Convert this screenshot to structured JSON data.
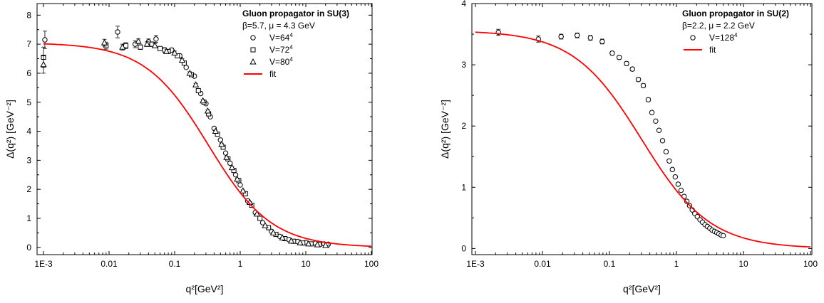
{
  "chart_data": [
    {
      "type": "scatter",
      "xscale": "log",
      "xlim": [
        0.001,
        100
      ],
      "ylim": [
        -0.25,
        8.4
      ],
      "xticks": [
        "1E-3",
        "0.01",
        "0.1",
        "1",
        "10",
        "100"
      ],
      "yticks": [
        "0",
        "1",
        "2",
        "3",
        "4",
        "5",
        "6",
        "7",
        "8"
      ],
      "xlabel": "q²[GeV²]",
      "ylabel": "Δ(q²) [GeV⁻²]",
      "legend": {
        "title": "Gluon propagator in SU(3)",
        "subtitle": "β=5.7, μ = 4.3 GeV",
        "placement": "top-right",
        "entries": [
          {
            "label": "V=64",
            "sup": "4",
            "marker": "circle"
          },
          {
            "label": "V=72",
            "sup": "4",
            "marker": "square"
          },
          {
            "label": "V=80",
            "sup": "4",
            "marker": "triangle"
          },
          {
            "label": "fit",
            "marker": "line",
            "color": "#ff0000"
          }
        ]
      },
      "fit": {
        "a": 7.05,
        "b": 1.2,
        "c": 0.4,
        "d": 0.9
      },
      "series": [
        {
          "name": "V=64⁴",
          "marker": "circle",
          "x": [
            0.00105,
            0.0135,
            0.025,
            0.04,
            0.052,
            0.07,
            0.09,
            0.12,
            0.15,
            0.2,
            0.25,
            0.3,
            0.35,
            0.4,
            0.5,
            0.6,
            0.7,
            0.85,
            1.0,
            1.3,
            1.7,
            2.2,
            3.0,
            4.0,
            5.5,
            7.5,
            10,
            14,
            19,
            22
          ],
          "y": [
            7.15,
            7.42,
            7.0,
            7.08,
            7.18,
            6.8,
            6.8,
            6.6,
            6.2,
            5.9,
            5.3,
            4.95,
            4.5,
            4.1,
            3.7,
            3.25,
            2.9,
            2.5,
            2.15,
            1.6,
            1.2,
            0.85,
            0.55,
            0.38,
            0.27,
            0.2,
            0.17,
            0.14,
            0.12,
            0.11
          ],
          "err": [
            0.3,
            0.2,
            0.12,
            0.1,
            0.12,
            0.08,
            0.07,
            0.06,
            0.05,
            0.05,
            0.05,
            0.05,
            0.04,
            0.04,
            0.04,
            0.04,
            0.03,
            0.03,
            0.03,
            0.03,
            0.02,
            0.02,
            0.02,
            0.02,
            0.02,
            0.02,
            0.01,
            0.01,
            0.01,
            0.01
          ]
        },
        {
          "name": "V=72⁴",
          "marker": "square",
          "x": [
            0.001,
            0.009,
            0.018,
            0.03,
            0.045,
            0.06,
            0.08,
            0.11,
            0.14,
            0.18,
            0.23,
            0.28,
            0.33,
            0.45,
            0.55,
            0.65,
            0.8,
            0.95,
            1.2,
            1.5,
            2.0,
            2.7,
            3.5,
            4.8,
            6.5,
            9,
            12,
            16,
            21
          ],
          "y": [
            6.55,
            6.95,
            6.95,
            6.9,
            7.0,
            6.85,
            6.75,
            6.6,
            6.35,
            5.95,
            5.4,
            5.0,
            4.6,
            3.9,
            3.45,
            3.05,
            2.65,
            2.3,
            1.85,
            1.45,
            1.0,
            0.68,
            0.45,
            0.3,
            0.21,
            0.15,
            0.12,
            0.1,
            0.08
          ],
          "err": [
            0.35,
            0.12,
            0.1,
            0.08,
            0.08,
            0.07,
            0.06,
            0.06,
            0.05,
            0.05,
            0.05,
            0.04,
            0.04,
            0.04,
            0.04,
            0.03,
            0.03,
            0.03,
            0.03,
            0.03,
            0.02,
            0.02,
            0.02,
            0.02,
            0.02,
            0.01,
            0.01,
            0.01,
            0.01
          ]
        },
        {
          "name": "V=80⁴",
          "marker": "triangle",
          "x": [
            0.001,
            0.0085,
            0.016,
            0.028,
            0.038,
            0.05,
            0.075,
            0.1,
            0.13,
            0.17,
            0.21,
            0.27,
            0.32,
            0.42,
            0.52,
            0.62,
            0.75,
            0.9,
            1.1,
            1.4,
            1.8,
            2.4,
            3.2,
            4.4,
            6.0,
            8.2,
            11,
            15,
            20
          ],
          "y": [
            6.3,
            7.05,
            6.9,
            7.1,
            7.0,
            6.95,
            6.75,
            6.7,
            6.45,
            6.0,
            5.6,
            5.05,
            4.7,
            4.0,
            3.55,
            3.1,
            2.75,
            2.35,
            1.95,
            1.55,
            1.15,
            0.75,
            0.5,
            0.33,
            0.22,
            0.16,
            0.12,
            0.09,
            0.07
          ],
          "err": [
            0.3,
            0.12,
            0.1,
            0.08,
            0.08,
            0.07,
            0.06,
            0.06,
            0.05,
            0.05,
            0.05,
            0.04,
            0.04,
            0.04,
            0.04,
            0.03,
            0.03,
            0.03,
            0.03,
            0.03,
            0.02,
            0.02,
            0.02,
            0.02,
            0.02,
            0.01,
            0.01,
            0.01,
            0.01
          ]
        }
      ]
    },
    {
      "type": "scatter",
      "xscale": "log",
      "xlim": [
        0.001,
        100
      ],
      "ylim": [
        -0.1,
        4.0
      ],
      "xticks": [
        "1E-3",
        "0.01",
        "0.1",
        "1",
        "10",
        "100"
      ],
      "yticks": [
        "0",
        "1",
        "2",
        "3",
        "4"
      ],
      "xlabel": "q²[GeV²]",
      "ylabel": "Δ(q²) [GeV⁻²]",
      "legend": {
        "title": "Gluon propagator in SU(2)",
        "subtitle": "β=2.2, μ = 2.2 GeV",
        "placement": "top-right",
        "entries": [
          {
            "label": "V=128",
            "sup": "4",
            "marker": "circle"
          },
          {
            "label": "fit",
            "marker": "line",
            "color": "#ff0000"
          }
        ]
      },
      "fit": {
        "a": 3.56,
        "b": 1.4,
        "c": 0.45,
        "d": 0.85
      },
      "series": [
        {
          "name": "V=128⁴",
          "marker": "circle",
          "x": [
            0.0022,
            0.0087,
            0.019,
            0.033,
            0.052,
            0.078,
            0.11,
            0.14,
            0.18,
            0.22,
            0.27,
            0.32,
            0.38,
            0.43,
            0.49,
            0.55,
            0.62,
            0.7,
            0.78,
            0.87,
            0.96,
            1.06,
            1.17,
            1.3,
            1.43,
            1.57,
            1.72,
            1.88,
            2.05,
            2.25,
            2.45,
            2.67,
            2.9,
            3.15,
            3.4,
            3.7,
            4.0,
            4.3,
            4.65,
            5.0
          ],
          "y": [
            3.53,
            3.42,
            3.46,
            3.48,
            3.44,
            3.38,
            3.19,
            3.12,
            3.02,
            2.93,
            2.76,
            2.66,
            2.43,
            2.22,
            2.08,
            1.93,
            1.76,
            1.58,
            1.43,
            1.29,
            1.17,
            1.05,
            0.95,
            0.85,
            0.77,
            0.7,
            0.63,
            0.57,
            0.52,
            0.47,
            0.43,
            0.39,
            0.36,
            0.33,
            0.3,
            0.28,
            0.26,
            0.24,
            0.22,
            0.21
          ],
          "err": [
            0.05,
            0.05,
            0.04,
            0.04,
            0.04,
            0.04,
            0.03,
            0.03,
            0.03,
            0.03,
            0.03,
            0.03,
            0.03,
            0.02,
            0.02,
            0.02,
            0.02,
            0.02,
            0.02,
            0.02,
            0.02,
            0.02,
            0.02,
            0.01,
            0.01,
            0.01,
            0.01,
            0.01,
            0.01,
            0.01,
            0.01,
            0.01,
            0.01,
            0.01,
            0.01,
            0.01,
            0.01,
            0.01,
            0.01,
            0.01
          ]
        }
      ]
    }
  ]
}
